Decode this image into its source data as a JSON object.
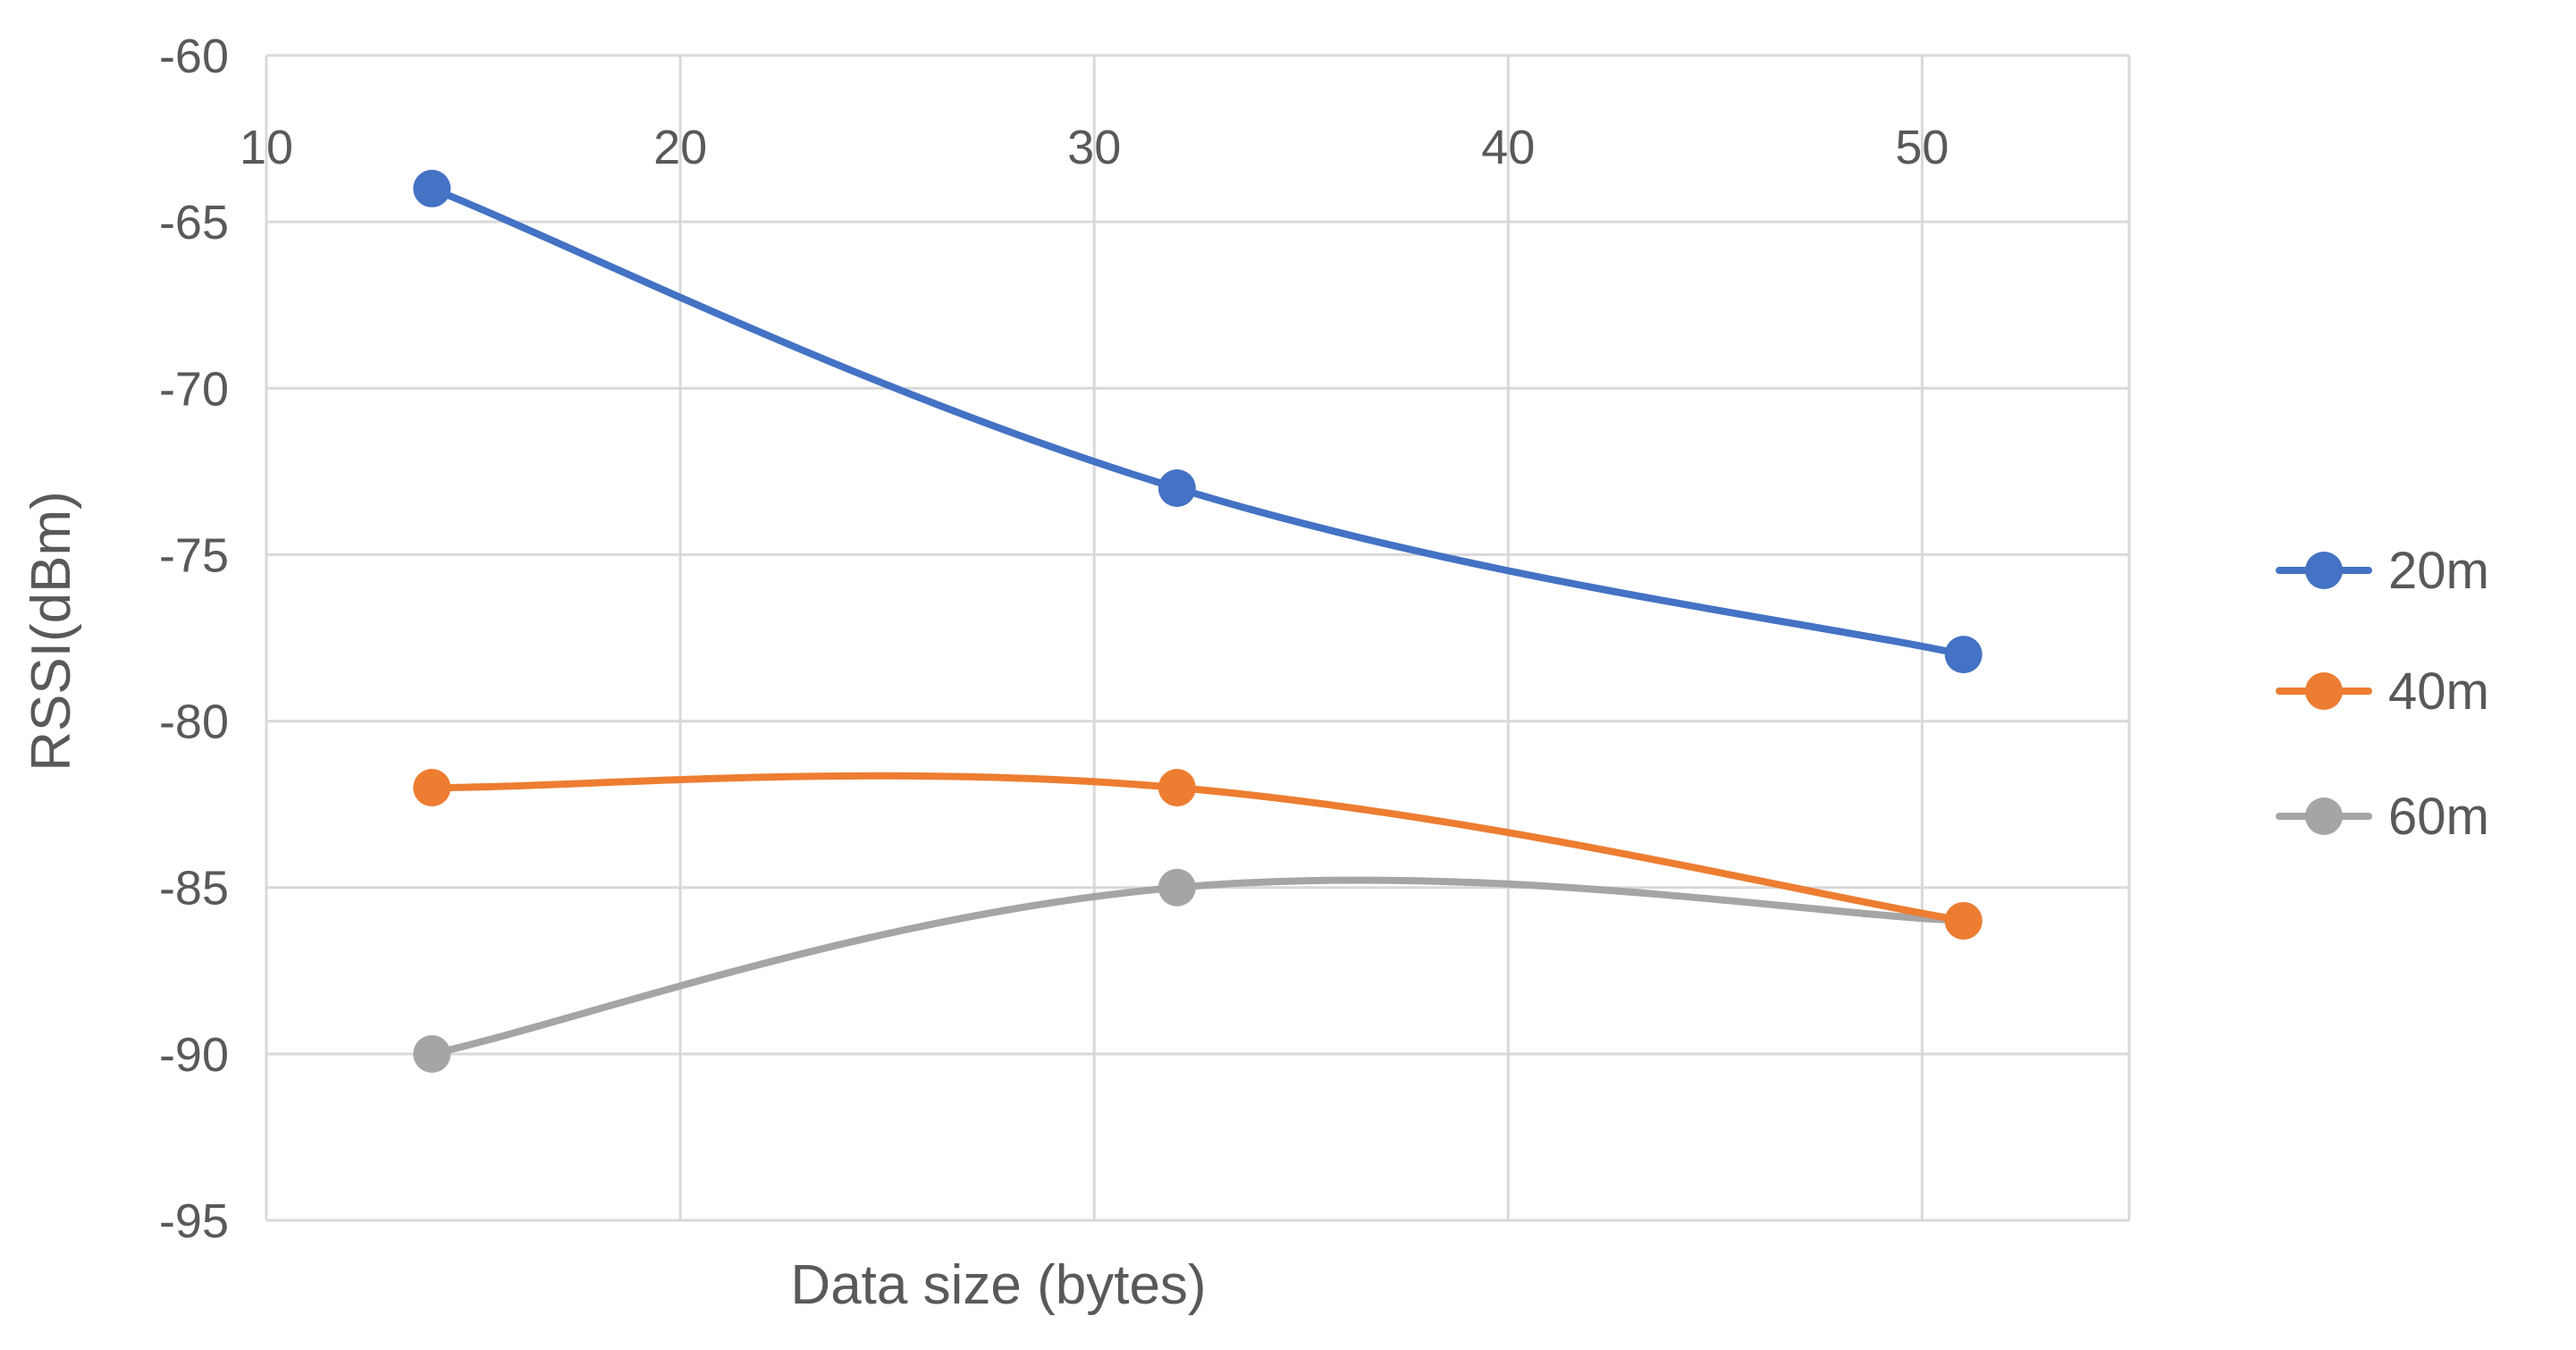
{
  "chart_data": {
    "type": "line",
    "title": "",
    "xlabel": "Data size (bytes)",
    "ylabel": "RSSI(dBm)",
    "xlim": [
      10,
      55
    ],
    "ylim": [
      -95,
      -60
    ],
    "x_ticks": [
      "10",
      "20",
      "30",
      "40",
      "50"
    ],
    "y_ticks": [
      "-60",
      "-65",
      "-70",
      "-75",
      "-80",
      "-85",
      "-90",
      "-95"
    ],
    "grid": true,
    "legend_position": "right",
    "series": [
      {
        "name": "20m",
        "color": "#4472C4",
        "x": [
          14,
          32,
          51
        ],
        "y": [
          -64,
          -73,
          -78
        ]
      },
      {
        "name": "40m",
        "color": "#ED7D31",
        "x": [
          14,
          32,
          51
        ],
        "y": [
          -82,
          -82,
          -86
        ]
      },
      {
        "name": "60m",
        "color": "#A5A5A5",
        "x": [
          14,
          32,
          51
        ],
        "y": [
          -90,
          -85,
          -86
        ]
      }
    ]
  }
}
